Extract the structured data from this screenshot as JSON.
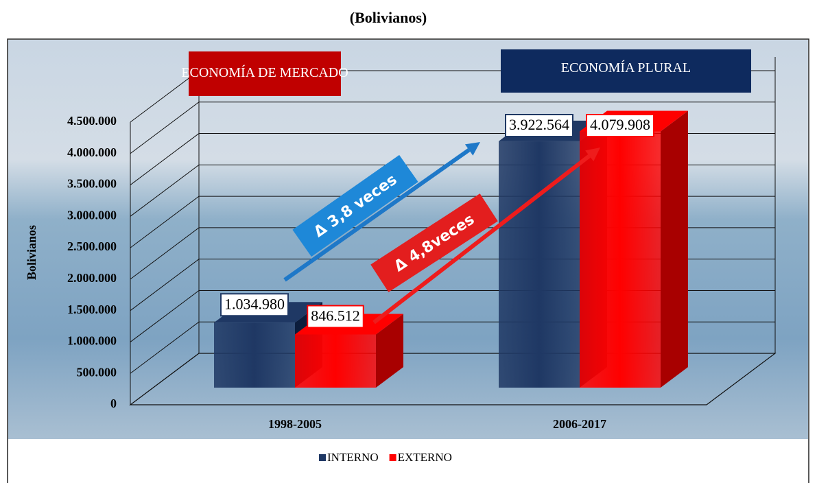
{
  "chart_data": {
    "type": "bar3d",
    "subtitle": "(Bolivianos)",
    "y_label": "Bolivianos",
    "categories": [
      "1998-2005",
      "2006-2017"
    ],
    "series": [
      {
        "name": "INTERNO",
        "color": "#1f3864",
        "values": [
          1034980,
          3922564
        ],
        "value_labels": [
          "1.034.980",
          "3.922.564"
        ]
      },
      {
        "name": "EXTERNO",
        "color": "#ff0000",
        "values": [
          846512,
          4079908
        ],
        "value_labels": [
          "846.512",
          "4.079.908"
        ]
      }
    ],
    "ylim": [
      0,
      4500000
    ],
    "yticks": [
      {
        "value": 0,
        "label": "0"
      },
      {
        "value": 500000,
        "label": "500.000"
      },
      {
        "value": 1000000,
        "label": "1.000.000"
      },
      {
        "value": 1500000,
        "label": "1.500.000"
      },
      {
        "value": 2000000,
        "label": "2.000.000"
      },
      {
        "value": 2500000,
        "label": "2.500.000"
      },
      {
        "value": 3000000,
        "label": "3.000.000"
      },
      {
        "value": 3500000,
        "label": "3.500.000"
      },
      {
        "value": 4000000,
        "label": "4.000.000"
      },
      {
        "value": 4500000,
        "label": "4.500.000"
      }
    ],
    "grid": true,
    "legend": "bottom",
    "banners": [
      {
        "text": "ECONOMÍA DE MERCADO",
        "color": "#c00000"
      },
      {
        "text": "ECONOMÍA PLURAL",
        "color": "#0e2a5e"
      }
    ],
    "annotations": [
      {
        "text": "Δ 3,8 veces",
        "color": "#1e88d8"
      },
      {
        "text": "Δ 4,8veces",
        "color": "#e31e1e"
      }
    ]
  }
}
